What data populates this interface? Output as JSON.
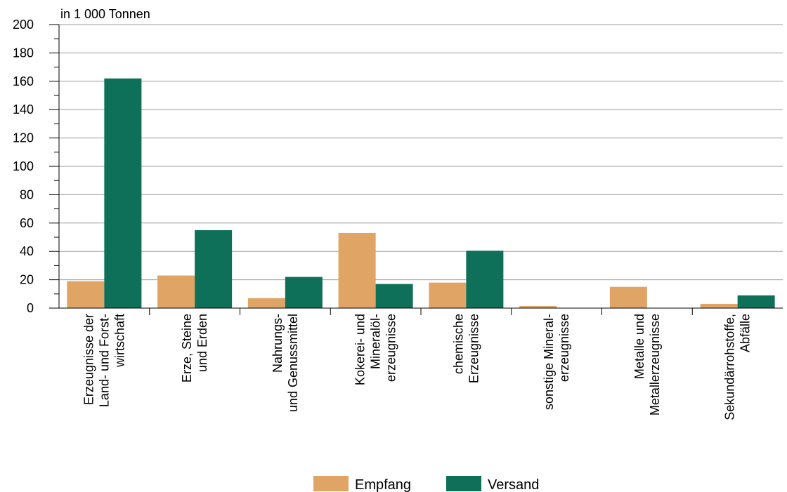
{
  "chart_data": {
    "type": "bar",
    "unit_label": "in 1 000 Tonnen",
    "ylim": [
      0,
      200
    ],
    "yticks": [
      0,
      20,
      40,
      60,
      80,
      100,
      120,
      140,
      160,
      180,
      200
    ],
    "grid": true,
    "legend_position": "bottom",
    "categories": [
      [
        "Erzeugnisse der",
        "Land- und Forst-",
        "wirtschaft"
      ],
      [
        "Erze, Steine",
        "und Erden"
      ],
      [
        "Nahrungs-",
        "und Genussmittel"
      ],
      [
        "Kokerei- und",
        "Mineralöl-",
        "erzeugnisse"
      ],
      [
        "chemische",
        "Erzeugnisse"
      ],
      [
        "sonstige Mineral-",
        "erzeugnisse"
      ],
      [
        "Metalle und",
        "Metallerzeugnisse"
      ],
      [
        "Sekundärrohstoffe,",
        "Abfälle"
      ]
    ],
    "series": [
      {
        "name": "Empfang",
        "color": "#E0A565",
        "values": [
          19,
          23,
          7,
          53,
          18,
          1.5,
          15,
          3
        ]
      },
      {
        "name": "Versand",
        "color": "#0E7058",
        "values": [
          162,
          55,
          22,
          17,
          40.5,
          0,
          0,
          9
        ]
      }
    ]
  }
}
